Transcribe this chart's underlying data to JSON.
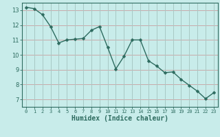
{
  "x": [
    0,
    1,
    2,
    3,
    4,
    5,
    6,
    7,
    8,
    9,
    10,
    11,
    12,
    13,
    14,
    15,
    16,
    17,
    18,
    19,
    20,
    21,
    22,
    23
  ],
  "y": [
    13.2,
    13.1,
    12.7,
    11.9,
    10.8,
    11.0,
    11.05,
    11.1,
    11.65,
    11.9,
    10.5,
    9.05,
    9.9,
    11.0,
    11.0,
    9.6,
    9.25,
    8.8,
    8.85,
    8.35,
    7.95,
    7.55,
    7.05,
    7.45
  ],
  "line_color": "#2d6b5f",
  "marker": "D",
  "marker_size": 2.5,
  "bg_color": "#c8ecea",
  "hgrid_color": "#c8a8a8",
  "vgrid_color": "#a8c8c4",
  "axis_color": "#2d6b5f",
  "tick_color": "#2d6b5f",
  "xlabel": "Humidex (Indice chaleur)",
  "xlabel_fontsize": 7,
  "xlim": [
    -0.5,
    23.5
  ],
  "ylim": [
    6.5,
    13.5
  ],
  "yticks": [
    7,
    8,
    9,
    10,
    11,
    12,
    13
  ],
  "xticks": [
    0,
    1,
    2,
    3,
    4,
    5,
    6,
    7,
    8,
    9,
    10,
    11,
    12,
    13,
    14,
    15,
    16,
    17,
    18,
    19,
    20,
    21,
    22,
    23
  ]
}
